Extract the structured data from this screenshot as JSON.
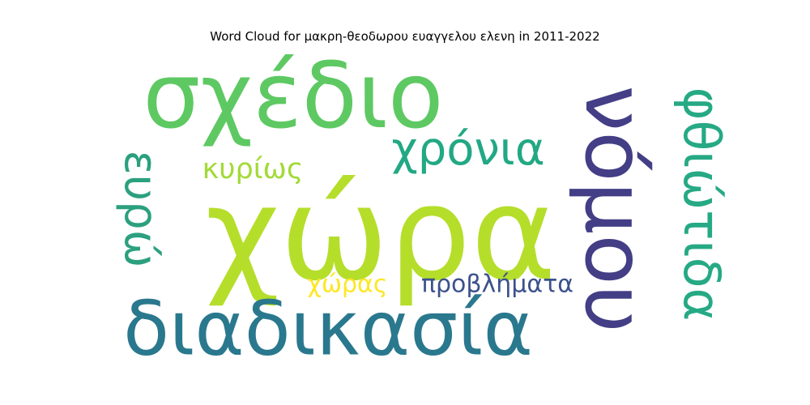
{
  "chart_data": {
    "type": "wordcloud",
    "title": "Word Cloud for μακρη-θεοδωρου ευαγγελου ελενη in 2011-2022",
    "words": [
      {
        "text": "χώρα",
        "weight": 1.0,
        "color": "#b5de2b",
        "orientation": "horizontal"
      },
      {
        "text": "νόμου",
        "weight": 0.64,
        "color": "#433e85",
        "orientation": "vertical"
      },
      {
        "text": "σχέδιο",
        "weight": 0.72,
        "color": "#5ec962",
        "orientation": "horizontal"
      },
      {
        "text": "διαδικασία",
        "weight": 0.6,
        "color": "#2a788e",
        "orientation": "horizontal"
      },
      {
        "text": "χρόνια",
        "weight": 0.36,
        "color": "#22a884",
        "orientation": "horizontal"
      },
      {
        "text": "φθιώτιδα",
        "weight": 0.4,
        "color": "#26a985",
        "orientation": "vertical"
      },
      {
        "text": "ευρώ",
        "weight": 0.36,
        "color": "#2ba07f",
        "orientation": "vertical"
      },
      {
        "text": "κυρίως",
        "weight": 0.22,
        "color": "#a2da37",
        "orientation": "horizontal"
      },
      {
        "text": "προβλήματα",
        "weight": 0.2,
        "color": "#3b528b",
        "orientation": "horizontal"
      },
      {
        "text": "χώρας",
        "weight": 0.2,
        "color": "#fde725",
        "orientation": "horizontal"
      }
    ]
  }
}
